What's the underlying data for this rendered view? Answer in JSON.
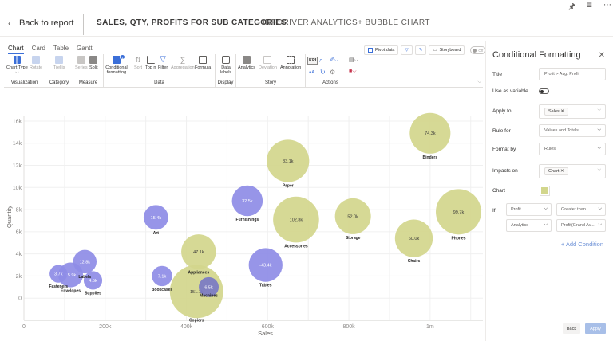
{
  "topbar": {
    "icons": [
      "pin-icon",
      "filter-icon",
      "more-icon"
    ]
  },
  "header": {
    "back_label": "Back to report",
    "title": "SALES, QTY, PROFITS FOR SUB CATEGORIES",
    "subtitle": "INFORIVER ANALYTICS+ BUBBLE CHART"
  },
  "tabs": [
    {
      "label": "Chart",
      "active": true
    },
    {
      "label": "Card",
      "active": false
    },
    {
      "label": "Table",
      "active": false
    },
    {
      "label": "Gantt",
      "active": false
    }
  ],
  "ribbon": {
    "groups": [
      {
        "label": "Visualization",
        "buttons": [
          {
            "label": "Chart Type",
            "enabled": true
          },
          {
            "label": "Rotate",
            "enabled": false
          }
        ]
      },
      {
        "label": "Category",
        "buttons": [
          {
            "label": "Trellis",
            "enabled": false
          }
        ]
      },
      {
        "label": "Measure",
        "buttons": [
          {
            "label": "Series",
            "enabled": false
          },
          {
            "label": "Split",
            "enabled": true
          }
        ]
      },
      {
        "label": "Data",
        "buttons": [
          {
            "label": "Conditional formatting",
            "enabled": true,
            "badge": "1"
          },
          {
            "label": "Sort",
            "enabled": false
          },
          {
            "label": "Top n",
            "enabled": true
          },
          {
            "label": "Filter",
            "enabled": true
          },
          {
            "label": "Aggregation",
            "enabled": false
          },
          {
            "label": "Formula",
            "enabled": true
          }
        ]
      },
      {
        "label": "Display",
        "buttons": [
          {
            "label": "Data labels",
            "enabled": true
          }
        ]
      },
      {
        "label": "Story",
        "buttons": [
          {
            "label": "Analytics",
            "enabled": true
          },
          {
            "label": "Deviation",
            "enabled": false
          },
          {
            "label": "Annotation",
            "enabled": true
          }
        ]
      },
      {
        "label": "Actions",
        "buttons": [
          {
            "label": "KPI",
            "enabled": true
          }
        ]
      }
    ],
    "top_right": {
      "pivot_label": "Pivot data",
      "storyboard_label": "Storyboard",
      "toggle_label": "Off"
    }
  },
  "panel": {
    "title": "Conditional Formatting",
    "fields": {
      "title_label": "Title",
      "title_value": "Profit > Avg. Profit",
      "variable_label": "Use as variable",
      "apply_label": "Apply to",
      "apply_chip": "Sales",
      "rule_label": "Rule for",
      "rule_value": "Values and Totals",
      "format_label": "Format by",
      "format_value": "Rules",
      "impacts_label": "Impacts on",
      "impacts_chip": "Chart",
      "chart_label": "Chart",
      "chart_color": "#d2d68c",
      "if_label": "If",
      "cond_field": "Profit",
      "cond_operator": "Greater than",
      "cond_source": "Analytics",
      "cond_value": "Profit(Grand Av..."
    },
    "add_condition": "+ Add Condition",
    "back_label": "Back",
    "apply_label": "Apply"
  },
  "chart_data": {
    "type": "scatter",
    "subtype": "bubble",
    "title": "",
    "xlabel": "Sales",
    "ylabel": "Quantity",
    "xlim": [
      0,
      1130000
    ],
    "ylim": [
      -2000,
      16500
    ],
    "x_ticks": [
      "0",
      "200k",
      "400k",
      "600k",
      "800k",
      "1m"
    ],
    "y_ticks": [
      "0",
      "2k",
      "4k",
      "6k",
      "8k",
      "10k",
      "12k",
      "14k",
      "16k"
    ],
    "grid": true,
    "colors": {
      "highlight": "#d2d68c",
      "default": "#8e8ce6",
      "overlap": "#7a79c4"
    },
    "points": [
      {
        "name": "Binders",
        "sales": 1000000,
        "qty": 14900,
        "profit_label": "74.3k",
        "highlight": true
      },
      {
        "name": "Paper",
        "sales": 650000,
        "qty": 12400,
        "profit_label": "83.1k",
        "highlight": true
      },
      {
        "name": "Furnishings",
        "sales": 550000,
        "qty": 8800,
        "profit_label": "32.5k",
        "highlight": false
      },
      {
        "name": "Accessories",
        "sales": 670000,
        "qty": 7100,
        "profit_label": "102.8k",
        "highlight": true
      },
      {
        "name": "Storage",
        "sales": 810000,
        "qty": 7400,
        "profit_label": "52.0k",
        "highlight": true
      },
      {
        "name": "Phones",
        "sales": 1070000,
        "qty": 7800,
        "profit_label": "99.7k",
        "highlight": true
      },
      {
        "name": "Chairs",
        "sales": 960000,
        "qty": 5400,
        "profit_label": "60.0k",
        "highlight": true
      },
      {
        "name": "Art",
        "sales": 325000,
        "qty": 7300,
        "profit_label": "15.4k",
        "highlight": false
      },
      {
        "name": "Appliances",
        "sales": 430000,
        "qty": 4200,
        "profit_label": "47.1k",
        "highlight": true
      },
      {
        "name": "Tables",
        "sales": 595000,
        "qty": 3000,
        "profit_label": "-43.4k",
        "highlight": false
      },
      {
        "name": "Labels",
        "sales": 150000,
        "qty": 3300,
        "profit_label": "12.8k",
        "highlight": false
      },
      {
        "name": "Fasteners",
        "sales": 85000,
        "qty": 2200,
        "profit_label": "3.7k",
        "highlight": false
      },
      {
        "name": "Envelopes",
        "sales": 115000,
        "qty": 2100,
        "profit_label": "15.9k",
        "highlight": false
      },
      {
        "name": "Supplies",
        "sales": 170000,
        "qty": 1600,
        "profit_label": "4.5k",
        "highlight": false
      },
      {
        "name": "Bookcases",
        "sales": 340000,
        "qty": 2000,
        "profit_label": "7.1k",
        "highlight": false
      },
      {
        "name": "Copiers",
        "sales": 425000,
        "qty": 600,
        "profit_label": "151.1k",
        "highlight": true
      },
      {
        "name": "Machines",
        "sales": 455000,
        "qty": 1000,
        "profit_label": "6.5k",
        "highlight": false
      }
    ]
  }
}
